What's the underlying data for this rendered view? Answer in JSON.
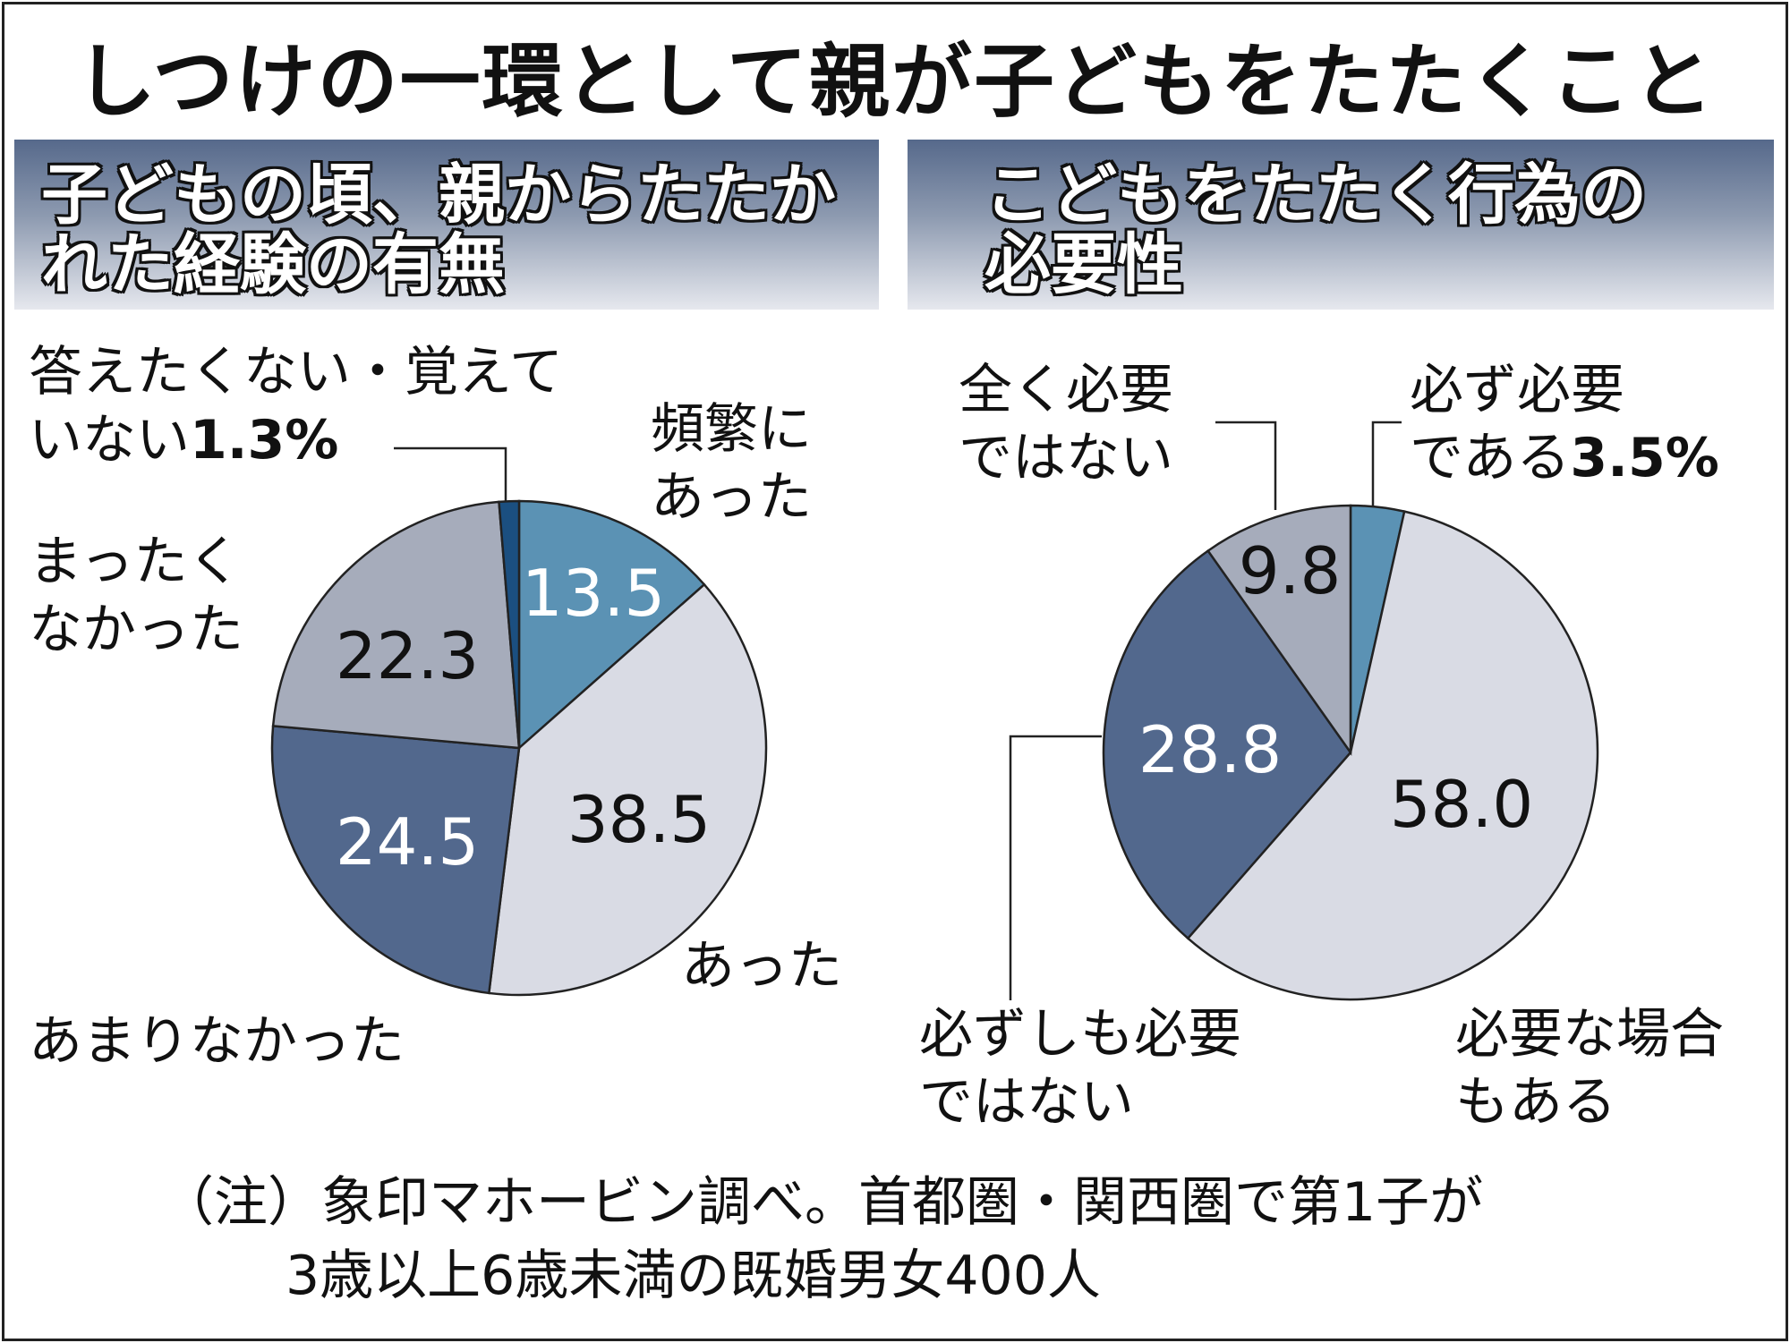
{
  "title": "しつけの一環として親が子どもをたたくこと",
  "chart_data": [
    {
      "type": "pie",
      "title": "子どもの頃、親からたたかれた経験の有無",
      "title_lines": [
        "子どもの頃、親からたたか",
        "れた経験の有無"
      ],
      "unit": "%",
      "start": "top",
      "direction": "clockwise",
      "slices": [
        {
          "label_lines": [
            "頻繁に",
            "あった"
          ],
          "value": 13.5,
          "value_label": "13.5",
          "color": "#5b92b4",
          "text_color": "#ffffff"
        },
        {
          "label_lines": [
            "あった"
          ],
          "value": 38.5,
          "value_label": "38.5",
          "color": "#d9dbe4",
          "text_color": "#111111"
        },
        {
          "label_lines": [
            "あまりなかった"
          ],
          "value": 24.5,
          "value_label": "24.5",
          "color": "#52688d",
          "text_color": "#ffffff"
        },
        {
          "label_lines": [
            "まったく",
            "なかった"
          ],
          "value": 22.3,
          "value_label": "22.3",
          "color": "#a6acbb",
          "text_color": "#111111"
        },
        {
          "label_lines": [
            "答えたくない・覚えて",
            "いない"
          ],
          "value": 1.3,
          "value_label": "1.3%",
          "color": "#1b4f80",
          "text_color": "#111111"
        }
      ]
    },
    {
      "type": "pie",
      "title": "こどもをたたく行為の必要性",
      "title_lines": [
        "こどもをたたく行為の",
        "必要性"
      ],
      "unit": "%",
      "start": "top",
      "direction": "clockwise",
      "slices": [
        {
          "label_lines": [
            "必ず必要",
            "である"
          ],
          "value": 3.5,
          "value_label": "3.5%",
          "color": "#5b92b4",
          "text_color": "#111111"
        },
        {
          "label_lines": [
            "必要な場合",
            "もある"
          ],
          "value": 58.0,
          "value_label": "58.0",
          "color": "#d9dbe4",
          "text_color": "#111111"
        },
        {
          "label_lines": [
            "必ずしも必要",
            "ではない"
          ],
          "value": 28.8,
          "value_label": "28.8",
          "color": "#52688d",
          "text_color": "#ffffff"
        },
        {
          "label_lines": [
            "全く必要",
            "ではない"
          ],
          "value": 9.8,
          "value_label": "9.8",
          "color": "#a6acbb",
          "text_color": "#111111"
        }
      ]
    }
  ],
  "note_lines": [
    "（注）象印マホービン調べ。首都圏・関西圏で第1子が",
    "3歳以上6歳未満の既婚男女400人"
  ]
}
